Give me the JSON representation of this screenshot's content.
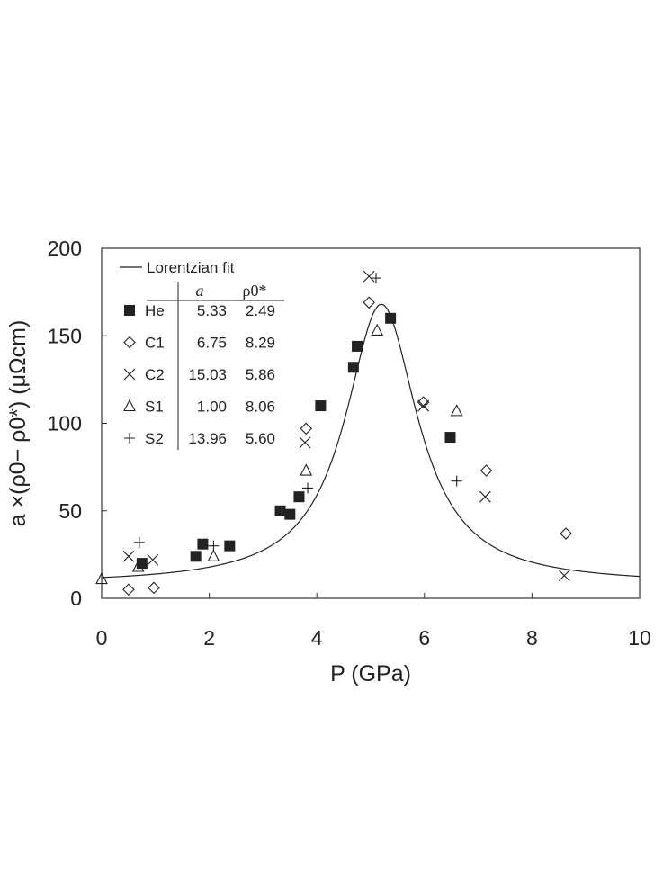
{
  "chart_data": {
    "type": "scatter",
    "xlabel": "P (GPa)",
    "ylabel": "a ×(ρ0− ρ0*) (μΩcm)",
    "xlim": [
      0,
      10
    ],
    "ylim": [
      0,
      200
    ],
    "x_ticks": [
      "0",
      "2",
      "4",
      "6",
      "8",
      "10"
    ],
    "y_ticks": [
      "0",
      "50",
      "100",
      "150",
      "200"
    ],
    "grid": false,
    "legend_position": "top-left",
    "fit": {
      "name": "Lorentzian fit",
      "type": "line",
      "x0": 5.2,
      "hwhm": 0.82,
      "amplitude": 160,
      "offset": 8
    },
    "table": {
      "columns": [
        "",
        "a",
        "ρ0*"
      ],
      "rows": [
        {
          "name": "He",
          "a": "5.33",
          "rho": "2.49"
        },
        {
          "name": "C1",
          "a": "6.75",
          "rho": "8.29"
        },
        {
          "name": "C2",
          "a": "15.03",
          "rho": "5.86"
        },
        {
          "name": "S1",
          "a": "1.00",
          "rho": "8.06"
        },
        {
          "name": "S2",
          "a": "13.96",
          "rho": "5.60"
        }
      ]
    },
    "series": [
      {
        "name": "He",
        "marker": "filled-square",
        "points": [
          [
            0.75,
            20
          ],
          [
            1.75,
            24
          ],
          [
            1.88,
            31
          ],
          [
            2.38,
            30
          ],
          [
            3.32,
            50
          ],
          [
            3.5,
            48
          ],
          [
            3.67,
            58
          ],
          [
            4.07,
            110
          ],
          [
            4.68,
            132
          ],
          [
            4.75,
            144
          ],
          [
            5.37,
            160
          ],
          [
            6.48,
            92
          ]
        ]
      },
      {
        "name": "C1",
        "marker": "diamond",
        "points": [
          [
            0.5,
            5
          ],
          [
            0.97,
            6
          ],
          [
            3.8,
            97
          ],
          [
            4.97,
            169
          ],
          [
            5.98,
            112
          ],
          [
            7.15,
            73
          ],
          [
            8.63,
            37
          ]
        ]
      },
      {
        "name": "C2",
        "marker": "x",
        "points": [
          [
            0.5,
            24
          ],
          [
            0.95,
            22
          ],
          [
            3.78,
            89
          ],
          [
            4.97,
            184
          ],
          [
            5.98,
            110
          ],
          [
            7.13,
            58
          ],
          [
            8.6,
            13
          ]
        ]
      },
      {
        "name": "S1",
        "marker": "triangle",
        "points": [
          [
            0.0,
            11
          ],
          [
            0.68,
            18
          ],
          [
            2.08,
            24
          ],
          [
            3.8,
            73
          ],
          [
            5.12,
            153
          ],
          [
            6.6,
            107
          ]
        ]
      },
      {
        "name": "S2",
        "marker": "plus",
        "points": [
          [
            0.7,
            32
          ],
          [
            2.08,
            30
          ],
          [
            3.83,
            63
          ],
          [
            5.1,
            183
          ],
          [
            6.6,
            67
          ]
        ]
      }
    ]
  }
}
